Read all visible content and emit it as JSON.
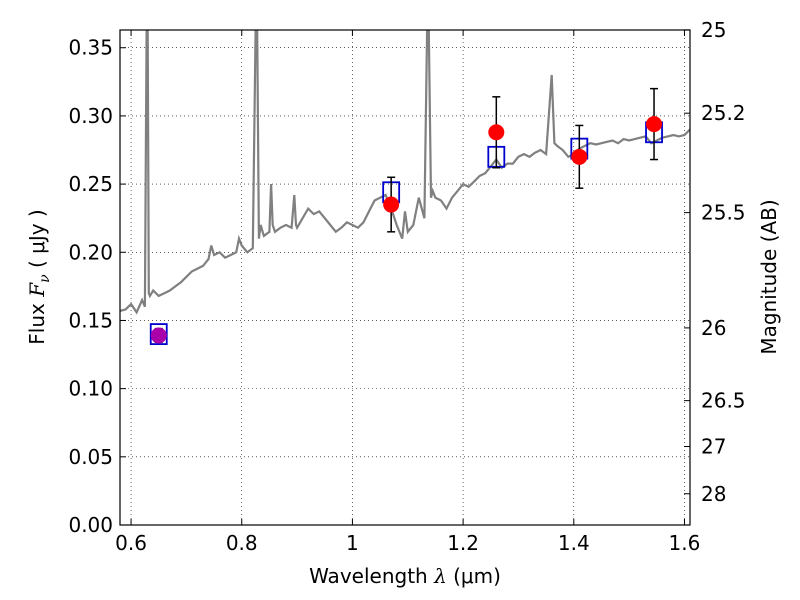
{
  "chart_data": {
    "type": "scatter",
    "x_axis": {
      "label_prefix": "Wavelength  ",
      "label_symbol": "λ",
      "label_suffix": " (μm)",
      "lim": [
        0.58,
        1.61
      ],
      "ticks": [
        0.6,
        0.8,
        1.0,
        1.2,
        1.4,
        1.6
      ],
      "tick_labels": [
        "0.6",
        "0.8",
        "1",
        "1.2",
        "1.4",
        "1.6"
      ]
    },
    "y_axis": {
      "label_prefix": "Flux  ",
      "label_symbol": "F",
      "label_subscript": "ν",
      "label_suffix": "  ( μJy )",
      "lim": [
        0.0,
        0.363
      ],
      "ticks": [
        0.0,
        0.05,
        0.1,
        0.15,
        0.2,
        0.25,
        0.3,
        0.35
      ],
      "tick_labels": [
        "0.00",
        "0.05",
        "0.10",
        "0.15",
        "0.20",
        "0.25",
        "0.30",
        "0.35"
      ]
    },
    "y2_axis": {
      "label": "Magnitude (AB)",
      "ticks": [
        25,
        25.2,
        25.5,
        26,
        26.5,
        27,
        28
      ],
      "tick_labels": [
        "25",
        "25.2",
        "25.5",
        "26",
        "26.5",
        "27",
        "28"
      ]
    },
    "grid": true,
    "series": [
      {
        "kind": "model_spectrum_line",
        "color": "#808080",
        "x": [
          0.58,
          0.59,
          0.6,
          0.61,
          0.62,
          0.625,
          0.628,
          0.63,
          0.632,
          0.634,
          0.64,
          0.65,
          0.66,
          0.67,
          0.68,
          0.69,
          0.7,
          0.71,
          0.72,
          0.73,
          0.74,
          0.745,
          0.75,
          0.76,
          0.77,
          0.78,
          0.79,
          0.795,
          0.8,
          0.81,
          0.82,
          0.825,
          0.828,
          0.831,
          0.834,
          0.84,
          0.85,
          0.853,
          0.856,
          0.86,
          0.87,
          0.88,
          0.89,
          0.895,
          0.898,
          0.9,
          0.91,
          0.92,
          0.93,
          0.94,
          0.95,
          0.96,
          0.97,
          0.98,
          0.99,
          1.0,
          1.01,
          1.02,
          1.03,
          1.04,
          1.05,
          1.06,
          1.07,
          1.08,
          1.09,
          1.095,
          1.1,
          1.11,
          1.12,
          1.13,
          1.135,
          1.138,
          1.142,
          1.145,
          1.15,
          1.16,
          1.17,
          1.18,
          1.19,
          1.2,
          1.21,
          1.22,
          1.23,
          1.24,
          1.25,
          1.26,
          1.27,
          1.28,
          1.29,
          1.3,
          1.31,
          1.32,
          1.33,
          1.34,
          1.35,
          1.36,
          1.365,
          1.37,
          1.38,
          1.39,
          1.4,
          1.41,
          1.42,
          1.43,
          1.44,
          1.45,
          1.46,
          1.47,
          1.48,
          1.49,
          1.5,
          1.51,
          1.52,
          1.53,
          1.54,
          1.55,
          1.56,
          1.57,
          1.58,
          1.59,
          1.6,
          1.61
        ],
        "y": [
          0.157,
          0.158,
          0.162,
          0.156,
          0.165,
          0.16,
          0.363,
          0.363,
          0.17,
          0.168,
          0.172,
          0.168,
          0.17,
          0.172,
          0.175,
          0.178,
          0.182,
          0.186,
          0.188,
          0.19,
          0.195,
          0.205,
          0.198,
          0.2,
          0.196,
          0.198,
          0.2,
          0.21,
          0.205,
          0.2,
          0.203,
          0.363,
          0.363,
          0.21,
          0.22,
          0.212,
          0.215,
          0.25,
          0.22,
          0.215,
          0.218,
          0.22,
          0.218,
          0.242,
          0.22,
          0.218,
          0.225,
          0.232,
          0.228,
          0.23,
          0.225,
          0.22,
          0.215,
          0.218,
          0.222,
          0.22,
          0.218,
          0.222,
          0.23,
          0.238,
          0.24,
          0.242,
          0.232,
          0.22,
          0.21,
          0.23,
          0.215,
          0.22,
          0.24,
          0.225,
          0.363,
          0.363,
          0.24,
          0.245,
          0.24,
          0.238,
          0.232,
          0.24,
          0.245,
          0.25,
          0.248,
          0.252,
          0.256,
          0.258,
          0.263,
          0.268,
          0.262,
          0.265,
          0.265,
          0.27,
          0.272,
          0.27,
          0.273,
          0.275,
          0.272,
          0.33,
          0.28,
          0.278,
          0.275,
          0.27,
          0.272,
          0.276,
          0.278,
          0.28,
          0.279,
          0.28,
          0.281,
          0.282,
          0.28,
          0.283,
          0.282,
          0.283,
          0.284,
          0.285,
          0.28,
          0.282,
          0.284,
          0.285,
          0.286,
          0.285,
          0.286,
          0.29
        ]
      },
      {
        "kind": "model_photometry",
        "marker": "open-square",
        "color": "#0000cc",
        "points": [
          {
            "x": 0.65,
            "y": 0.14
          },
          {
            "x": 1.07,
            "y": 0.244
          },
          {
            "x": 1.26,
            "y": 0.27
          },
          {
            "x": 1.41,
            "y": 0.276
          },
          {
            "x": 1.545,
            "y": 0.288
          }
        ]
      },
      {
        "kind": "observed_photometry",
        "marker": "filled-circle",
        "color": "#ff0000",
        "overlap_color": "#aa00aa",
        "errorbar_color": "#000000",
        "points": [
          {
            "x": 0.65,
            "y": 0.139,
            "err": 0.005,
            "color": "#aa00aa"
          },
          {
            "x": 1.07,
            "y": 0.235,
            "err": 0.02
          },
          {
            "x": 1.26,
            "y": 0.288,
            "err": 0.026
          },
          {
            "x": 1.41,
            "y": 0.27,
            "err": 0.023
          },
          {
            "x": 1.545,
            "y": 0.294,
            "err": 0.026
          }
        ]
      }
    ]
  }
}
